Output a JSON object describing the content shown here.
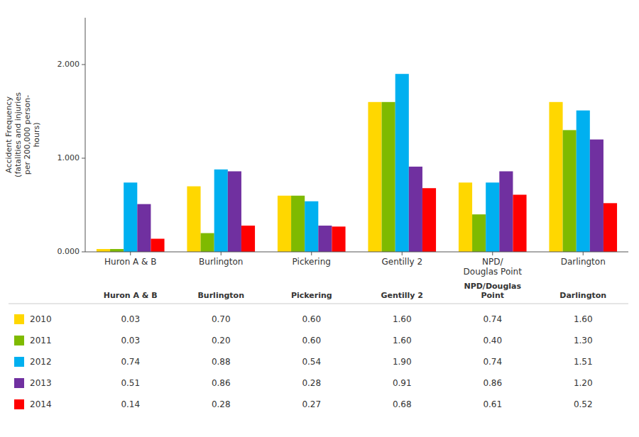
{
  "chart_data": {
    "type": "bar",
    "y_label": "Accident Frequency\n(fatalities and injuries\nper 200,000 person-\nhours)",
    "categories": [
      "Huron A & B",
      "Burlington",
      "Pickering",
      "Gentilly 2",
      "NPD/\nDouglas Point",
      "Darlington"
    ],
    "series": [
      {
        "name": "2010",
        "color": "#FFD700",
        "values": [
          0.03,
          0.7,
          0.6,
          1.6,
          0.74,
          1.6
        ],
        "value_labels": [
          "0.03",
          "0.70",
          "0.60",
          "1.60",
          "0.74",
          "1.60"
        ]
      },
      {
        "name": "2011",
        "color": "#7FBA00",
        "values": [
          0.03,
          0.2,
          0.6,
          1.6,
          0.4,
          1.3
        ],
        "value_labels": [
          "0.03",
          "0.20",
          "0.60",
          "1.60",
          "0.40",
          "1.30"
        ]
      },
      {
        "name": "2012",
        "color": "#00B0F0",
        "values": [
          0.74,
          0.88,
          0.54,
          1.9,
          0.74,
          1.51
        ],
        "value_labels": [
          "0.74",
          "0.88",
          "0.54",
          "1.90",
          "0.74",
          "1.51"
        ]
      },
      {
        "name": "2013",
        "color": "#7030A0",
        "values": [
          0.51,
          0.86,
          0.28,
          0.91,
          0.86,
          1.2
        ],
        "value_labels": [
          "0.51",
          "0.86",
          "0.28",
          "0.91",
          "0.86",
          "1.20"
        ]
      },
      {
        "name": "2014",
        "color": "#FF0000",
        "values": [
          0.14,
          0.28,
          0.27,
          0.68,
          0.61,
          0.52
        ],
        "value_labels": [
          "0.14",
          "0.28",
          "0.27",
          "0.68",
          "0.61",
          "0.52"
        ]
      }
    ],
    "table_headers": [
      "Huron A & B",
      "Burlington",
      "Pickering",
      "Gentilly 2",
      "NPD/Douglas\nPoint",
      "Darlington"
    ],
    "ylim": [
      0,
      2.5
    ],
    "yticks": [
      {
        "value": 0,
        "label": "0.000"
      },
      {
        "value": 1,
        "label": "1.000"
      },
      {
        "value": 2,
        "label": "2.000"
      }
    ],
    "grid": false,
    "legend": "bottom"
  }
}
